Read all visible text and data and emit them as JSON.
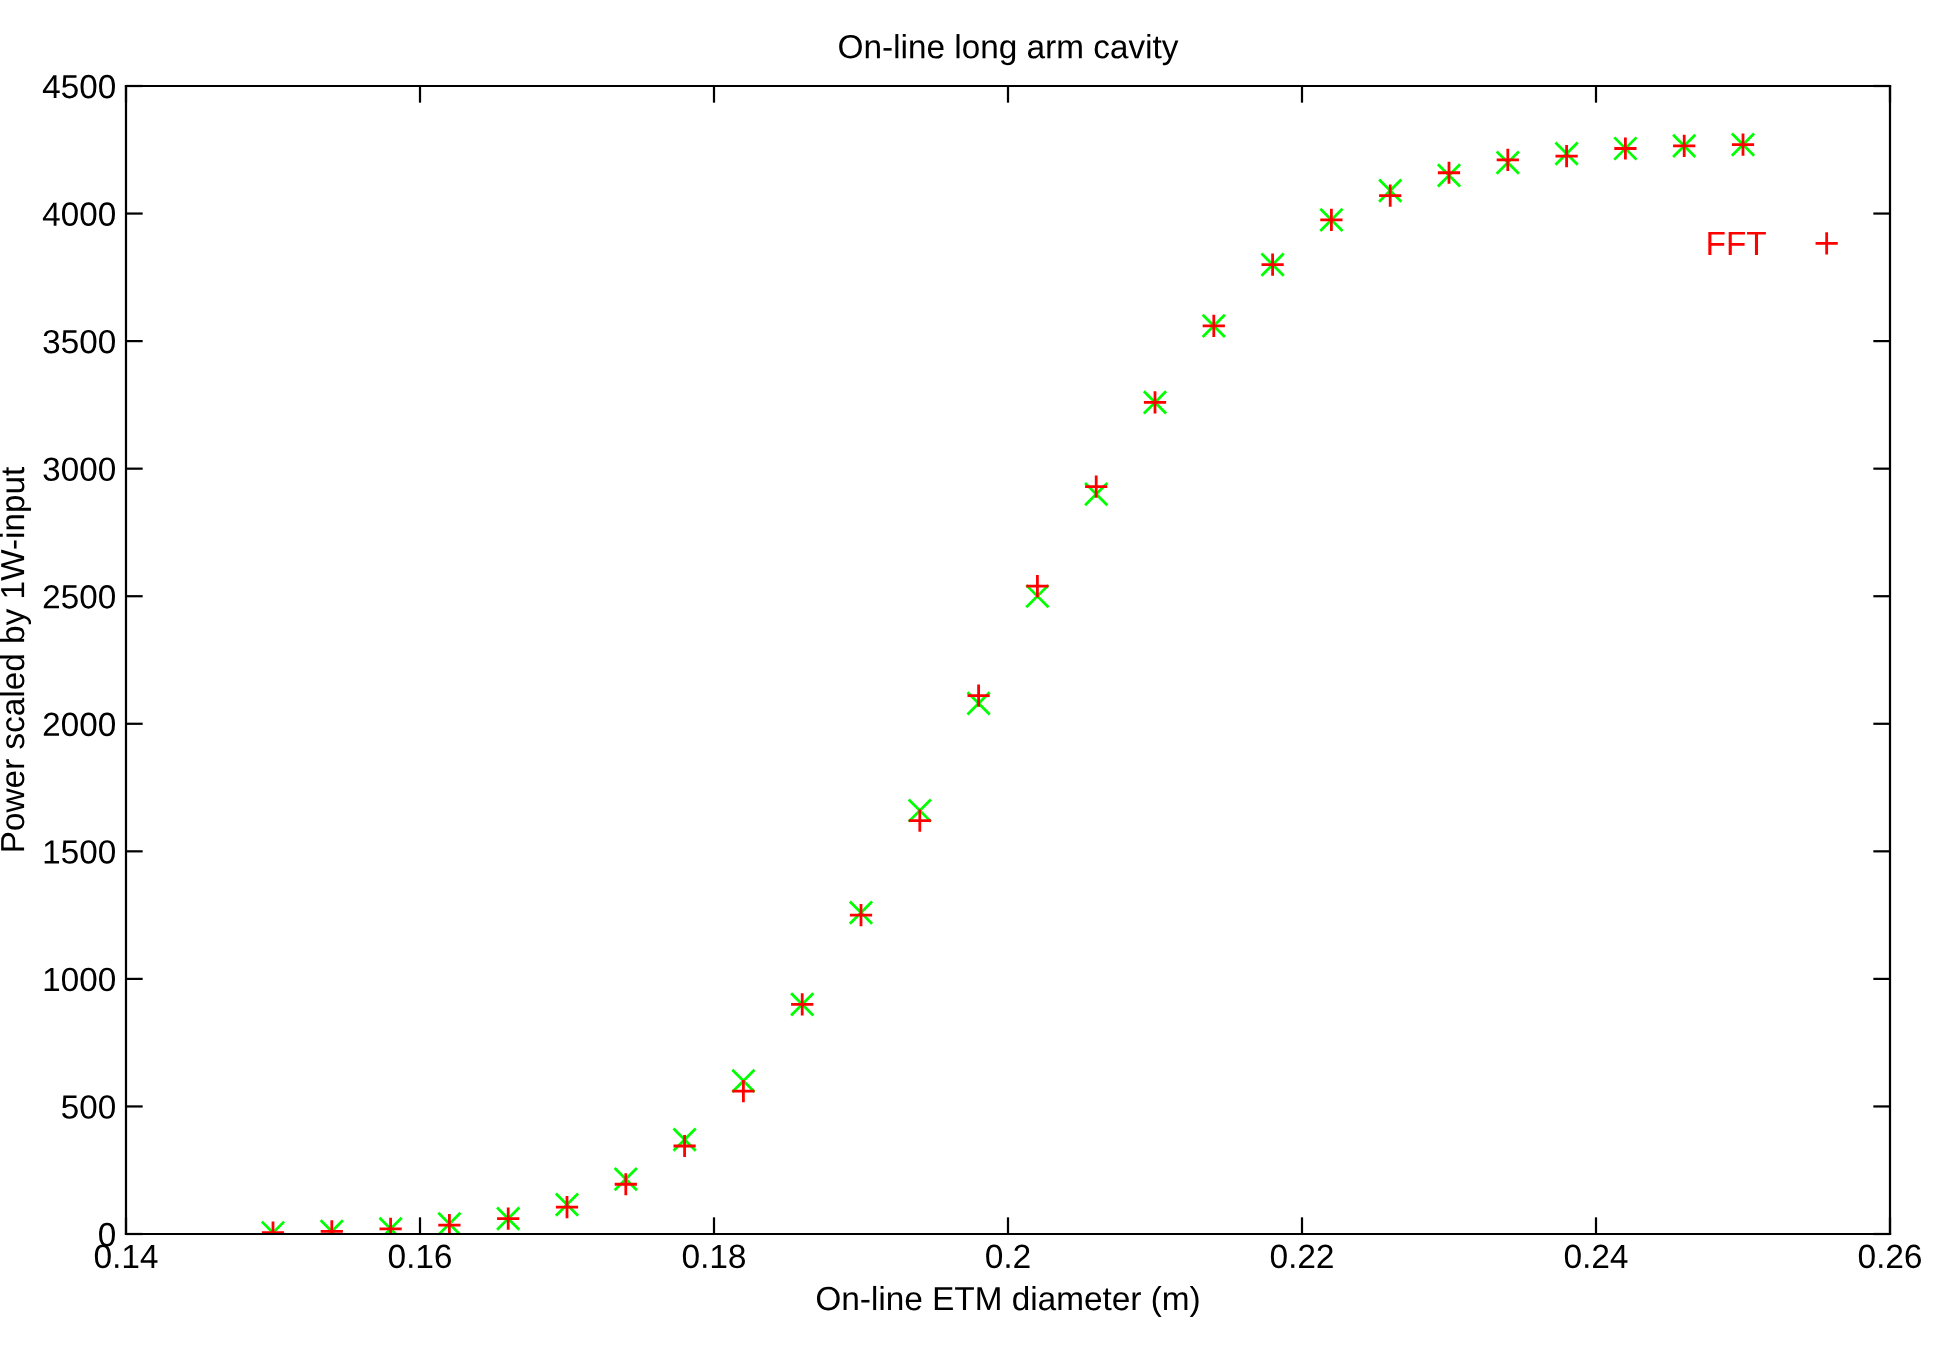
{
  "chart_data": {
    "type": "scatter",
    "title": "On-line long arm cavity",
    "xlabel": "On-line ETM diameter (m)",
    "ylabel": "Power scaled by 1W-input",
    "x": [
      0.15,
      0.154,
      0.158,
      0.162,
      0.166,
      0.17,
      0.174,
      0.178,
      0.182,
      0.186,
      0.19,
      0.194,
      0.198,
      0.202,
      0.206,
      0.21,
      0.214,
      0.218,
      0.222,
      0.226,
      0.23,
      0.234,
      0.238,
      0.242,
      0.246,
      0.25
    ],
    "series": [
      {
        "color": "#00ff00",
        "marker": "cross",
        "values": [
          5,
          10,
          20,
          40,
          60,
          115,
          215,
          370,
          600,
          900,
          1260,
          1660,
          2080,
          2500,
          2900,
          3260,
          3560,
          3800,
          3975,
          4090,
          4150,
          4200,
          4235,
          4255,
          4265,
          4270
        ]
      },
      {
        "name": "FFT",
        "color": "#ff0000",
        "marker": "plus",
        "values": [
          5,
          10,
          20,
          35,
          60,
          105,
          195,
          345,
          560,
          900,
          1250,
          1620,
          2110,
          2540,
          2930,
          3260,
          3560,
          3800,
          3975,
          4070,
          4160,
          4210,
          4225,
          4255,
          4265,
          4270
        ]
      }
    ],
    "xlim": [
      0.14,
      0.26
    ],
    "xticks": [
      0.14,
      0.16,
      0.18,
      0.2,
      0.22,
      0.24,
      0.26
    ],
    "ylim": [
      0,
      4500
    ],
    "yticks": [
      0,
      500,
      1000,
      1500,
      2000,
      2500,
      3000,
      3500,
      4000,
      4500
    ],
    "grid": false,
    "legend": "top right"
  }
}
